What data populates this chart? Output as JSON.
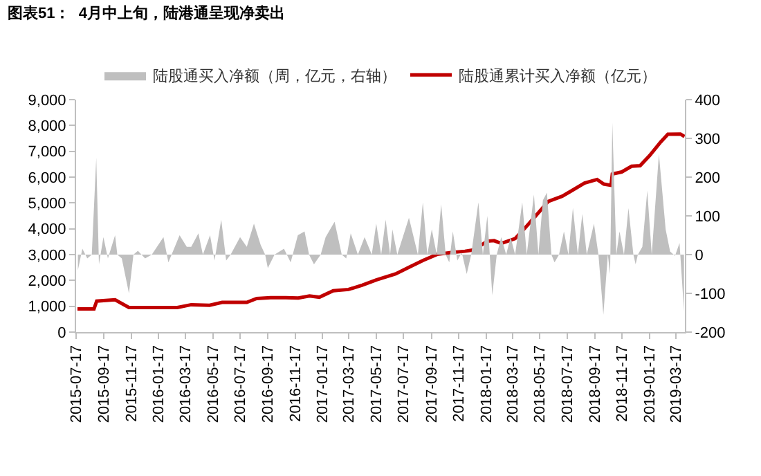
{
  "chart_data": {
    "type": "line",
    "title": "图表51：  4月中上旬，陆港通呈现净卖出",
    "legend": "top",
    "xlim": [
      "2015-07-17",
      "2019-04-06"
    ],
    "xticks": [
      "2015-07-17",
      "2015-09-17",
      "2015-11-17",
      "2016-01-17",
      "2016-03-17",
      "2016-05-17",
      "2016-07-17",
      "2016-09-17",
      "2016-11-17",
      "2017-01-17",
      "2017-03-17",
      "2017-05-17",
      "2017-07-17",
      "2017-09-17",
      "2017-11-17",
      "2018-01-17",
      "2018-03-17",
      "2018-05-17",
      "2018-07-17",
      "2018-09-17",
      "2018-11-17",
      "2019-01-17",
      "2019-03-17"
    ],
    "ylim": [
      0,
      9000
    ],
    "yticks": [
      {
        "value": 0,
        "label": "0"
      },
      {
        "value": 1000,
        "label": "1,000"
      },
      {
        "value": 2000,
        "label": "2,000"
      },
      {
        "value": 3000,
        "label": "3,000"
      },
      {
        "value": 4000,
        "label": "4,000"
      },
      {
        "value": 5000,
        "label": "5,000"
      },
      {
        "value": 6000,
        "label": "6,000"
      },
      {
        "value": 7000,
        "label": "7,000"
      },
      {
        "value": 8000,
        "label": "8,000"
      },
      {
        "value": 9000,
        "label": "9,000"
      }
    ],
    "y2lim": [
      -200,
      400
    ],
    "y2ticks": [
      -200,
      -100,
      0,
      100,
      200,
      300,
      400
    ],
    "series": [
      {
        "name": "陆股通买入净额（周，亿元，右轴）",
        "type": "area",
        "axis": "y2",
        "color": "#bfbfbf",
        "x": [
          "2015-07-21",
          "2015-07-31",
          "2015-08-11",
          "2015-08-21",
          "2015-08-31",
          "2015-09-06",
          "2015-09-16",
          "2015-09-26",
          "2015-10-12",
          "2015-10-17",
          "2015-10-27",
          "2015-11-12",
          "2015-11-22",
          "2015-12-02",
          "2015-12-18",
          "2016-01-02",
          "2016-01-28",
          "2016-02-08",
          "2016-03-04",
          "2016-03-20",
          "2016-03-30",
          "2016-04-15",
          "2016-04-25",
          "2016-05-11",
          "2016-05-21",
          "2016-06-05",
          "2016-06-16",
          "2016-06-26",
          "2016-07-17",
          "2016-08-01",
          "2016-08-17",
          "2016-09-01",
          "2016-09-11",
          "2016-09-17",
          "2016-10-02",
          "2016-10-23",
          "2016-11-07",
          "2016-11-23",
          "2016-12-08",
          "2016-12-18",
          "2016-12-29",
          "2017-01-13",
          "2017-01-24",
          "2017-02-13",
          "2017-03-01",
          "2017-03-11",
          "2017-03-21",
          "2017-04-06",
          "2017-04-21",
          "2017-05-07",
          "2017-05-17",
          "2017-05-28",
          "2017-06-07",
          "2017-06-17",
          "2017-06-22",
          "2017-07-03",
          "2017-07-29",
          "2017-08-18",
          "2017-08-29",
          "2017-09-08",
          "2017-09-18",
          "2017-09-29",
          "2017-10-09",
          "2017-10-19",
          "2017-10-27",
          "2017-11-04",
          "2017-11-14",
          "2017-11-24",
          "2017-12-05",
          "2017-12-15",
          "2017-12-31",
          "2018-01-10",
          "2018-01-20",
          "2018-01-31",
          "2018-02-10",
          "2018-02-20",
          "2018-03-03",
          "2018-03-13",
          "2018-03-23",
          "2018-04-08",
          "2018-04-18",
          "2018-05-04",
          "2018-05-14",
          "2018-05-24",
          "2018-06-02",
          "2018-06-12",
          "2018-06-19",
          "2018-06-29",
          "2018-07-10",
          "2018-07-20",
          "2018-07-30",
          "2018-08-10",
          "2018-08-20",
          "2018-08-30",
          "2018-09-15",
          "2018-09-25",
          "2018-10-06",
          "2018-10-16",
          "2018-10-21",
          "2018-10-26",
          "2018-11-04",
          "2018-11-11",
          "2018-11-21",
          "2018-12-01",
          "2018-12-12",
          "2018-12-17",
          "2018-12-22",
          "2019-01-01",
          "2019-01-12",
          "2019-01-22",
          "2019-02-07",
          "2019-02-22",
          "2019-03-04",
          "2019-03-15",
          "2019-03-25",
          "2019-04-04"
        ],
        "values": [
          -40,
          15,
          -10,
          0,
          250,
          -25,
          45,
          -10,
          50,
          0,
          -10,
          -100,
          0,
          10,
          -10,
          0,
          45,
          -20,
          50,
          20,
          20,
          55,
          0,
          50,
          -15,
          90,
          -15,
          0,
          45,
          20,
          80,
          25,
          0,
          -35,
          0,
          15,
          -20,
          50,
          60,
          0,
          -25,
          0,
          45,
          85,
          0,
          -10,
          55,
          0,
          45,
          0,
          80,
          0,
          90,
          0,
          65,
          0,
          95,
          0,
          135,
          0,
          65,
          0,
          130,
          0,
          -20,
          60,
          -15,
          5,
          -50,
          0,
          135,
          0,
          100,
          -105,
          0,
          45,
          0,
          45,
          0,
          135,
          0,
          155,
          0,
          140,
          160,
          0,
          -20,
          0,
          60,
          0,
          120,
          0,
          105,
          0,
          80,
          0,
          -155,
          0,
          -50,
          340,
          0,
          60,
          0,
          120,
          0,
          -25,
          0,
          20,
          165,
          0,
          260,
          65,
          8,
          -3,
          30,
          -145
        ]
      },
      {
        "name": "陆股通累计买入净额（亿元）",
        "color": "#c00000",
        "x": [
          "2015-07-20",
          "2015-08-26",
          "2015-09-01",
          "2015-10-12",
          "2015-11-12",
          "2016-02-28",
          "2016-03-30",
          "2016-05-10",
          "2016-06-07",
          "2016-08-01",
          "2016-08-23",
          "2016-09-23",
          "2016-10-27",
          "2016-11-24",
          "2016-12-19",
          "2017-01-10",
          "2017-02-10",
          "2017-03-16",
          "2017-04-16",
          "2017-05-17",
          "2017-06-29",
          "2017-07-30",
          "2017-08-30",
          "2017-09-30",
          "2017-10-31",
          "2017-12-01",
          "2017-12-20",
          "2018-01-20",
          "2018-02-04",
          "2018-02-20",
          "2018-03-23",
          "2018-04-13",
          "2018-05-05",
          "2018-06-05",
          "2018-07-06",
          "2018-07-25",
          "2018-08-25",
          "2018-09-22",
          "2018-10-07",
          "2018-10-23",
          "2018-10-26",
          "2018-11-16",
          "2018-12-08",
          "2018-12-27",
          "2019-01-17",
          "2019-02-11",
          "2019-02-27",
          "2019-03-27",
          "2019-04-05"
        ],
        "values": [
          900,
          900,
          1200,
          1250,
          950,
          950,
          1060,
          1040,
          1150,
          1150,
          1300,
          1330,
          1330,
          1320,
          1400,
          1350,
          1600,
          1650,
          1820,
          2020,
          2250,
          2520,
          2780,
          3010,
          3080,
          3130,
          3180,
          3520,
          3540,
          3430,
          3620,
          4010,
          4440,
          5060,
          5260,
          5450,
          5770,
          5910,
          5730,
          5680,
          6120,
          6200,
          6420,
          6440,
          6830,
          7360,
          7660,
          7670,
          7570
        ]
      }
    ]
  }
}
